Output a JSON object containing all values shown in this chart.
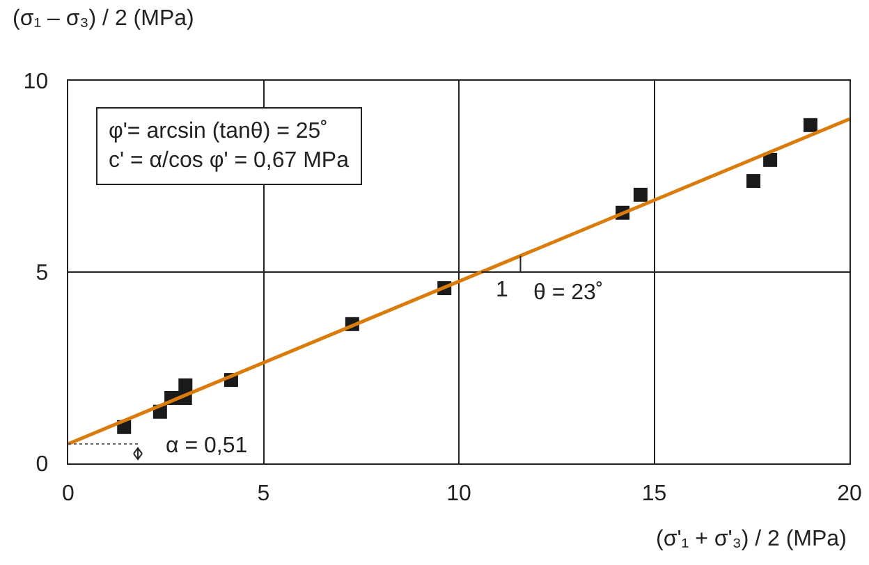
{
  "chart_data": {
    "type": "scatter",
    "xlabel": "(σ'₁ + σ'₃) / 2 (MPa)",
    "ylabel": "(σ₁ – σ₃) / 2 (MPa)",
    "xlim": [
      0,
      20
    ],
    "ylim": [
      0,
      10
    ],
    "xticks": [
      0,
      5,
      10,
      15,
      20
    ],
    "yticks": [
      0,
      5,
      10
    ],
    "grid": true,
    "series": [
      {
        "color": "#1a1a1a",
        "marker": "square",
        "x": [
          1.43,
          2.35,
          2.64,
          2.99,
          3.0,
          4.17,
          7.27,
          9.63,
          14.19,
          14.65,
          17.54,
          17.97,
          19.0
        ],
        "values": [
          0.95,
          1.35,
          1.71,
          1.71,
          2.04,
          2.18,
          3.64,
          4.58,
          6.55,
          7.02,
          7.38,
          7.93,
          8.84
        ]
      },
      {
        "type": "line",
        "color": "#d97c0c",
        "marker": "none",
        "line_style": "solid",
        "x": [
          0,
          20
        ],
        "values": [
          0.51,
          9.0
        ]
      }
    ],
    "annotations": [
      "φ'= arcsin (tanθ) = 25˚\nc' = α/cos φ' = 0,67 MPa",
      {
        "text": "α = 0,51",
        "x": 0,
        "y": 0.51
      },
      "1",
      "θ = 23˚"
    ]
  }
}
